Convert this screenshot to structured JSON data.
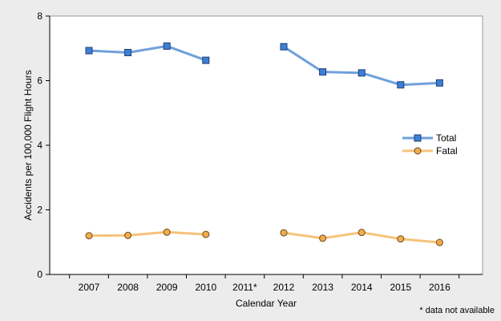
{
  "chart_data": {
    "type": "line",
    "categories": [
      "2007",
      "2008",
      "2009",
      "2010",
      "2011*",
      "2012",
      "2013",
      "2014",
      "2015",
      "2016"
    ],
    "series": [
      {
        "name": "Total",
        "color": "#6fa0dc",
        "marker": "square",
        "marker_fill": "#3d7fd6",
        "values": [
          6.93,
          6.87,
          7.07,
          6.63,
          null,
          7.05,
          6.27,
          6.24,
          5.87,
          5.93
        ]
      },
      {
        "name": "Fatal",
        "color": "#f7c27a",
        "marker": "circle",
        "marker_fill": "#f0ad4e",
        "values": [
          1.2,
          1.21,
          1.31,
          1.24,
          null,
          1.29,
          1.12,
          1.3,
          1.1,
          0.99
        ]
      }
    ],
    "xlabel": "Calendar Year",
    "ylabel": "Accidents per 100,000 Flight Hours",
    "ylim": [
      0,
      8
    ],
    "yticks": [
      "0",
      "2",
      "4",
      "6",
      "8"
    ],
    "grid": false,
    "legend_position": "right",
    "footnote": "* data not available"
  }
}
